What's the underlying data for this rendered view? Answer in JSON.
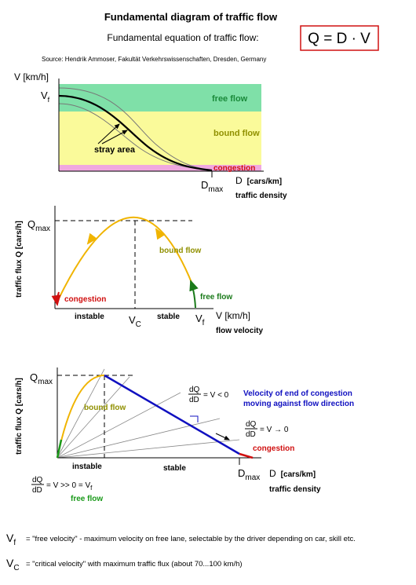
{
  "header": {
    "title": "Fundamental diagram of traffic flow",
    "subtitle": "Fundamental equation of traffic flow:",
    "equation": "Q = D · V",
    "source": "Source: Hendrik Ammoser, Fakultät Verkehrswissenschaften, Dresden, Germany"
  },
  "diagram1": {
    "y_axis": "V [km/h]",
    "vf": {
      "main": "V",
      "sub": "f"
    },
    "zones": [
      "free flow",
      "bound flow",
      "congestion"
    ],
    "stray": "stray area",
    "dmax": {
      "main": "D",
      "sub": "max"
    },
    "x_axis": "D",
    "x_unit": "[cars/km]",
    "x_name": "traffic density"
  },
  "diagram2": {
    "y_axis": "traffic flux Q [cars/h]",
    "qmax": {
      "main": "Q",
      "sub": "max"
    },
    "bound": "bound flow",
    "free": "free flow",
    "congestion": "congestion",
    "regions": [
      "instable",
      "stable"
    ],
    "vc": {
      "main": "V",
      "sub": "C"
    },
    "vf": {
      "main": "V",
      "sub": "f"
    },
    "x_axis": "V [km/h]",
    "x_name": "flow velocity"
  },
  "diagram3": {
    "y_axis": "traffic flux Q [cars/h]",
    "qmax": {
      "main": "Q",
      "sub": "max"
    },
    "bound": "bound flow",
    "slope_neg": {
      "num": "dQ",
      "den": "dD",
      "rest": "= V < 0"
    },
    "note": [
      "Velocity of end of congestion",
      "moving against flow direction"
    ],
    "slope_zero": {
      "num": "dQ",
      "den": "dD",
      "rest": "= V → 0"
    },
    "congestion": "congestion",
    "regions": [
      "instable",
      "stable"
    ],
    "dmax": {
      "main": "D",
      "sub": "max"
    },
    "x_axis": "D",
    "x_unit": "[cars/km]",
    "x_name": "traffic density",
    "slope_free": {
      "num": "dQ",
      "den": "dD",
      "rest": "= V >> 0 = ",
      "main": "V",
      "sub": "f"
    },
    "free": "free flow"
  },
  "footer": [
    {
      "main": "V",
      "sub": "f",
      "text": "= \"free velocity\" - maximum velocity on free lane, selectable by the driver depending on car, skill etc."
    },
    {
      "main": "V",
      "sub": "C",
      "text": "= \"critical velocity\"  with maximum traffic flux (about 70...100 km/h)"
    }
  ]
}
